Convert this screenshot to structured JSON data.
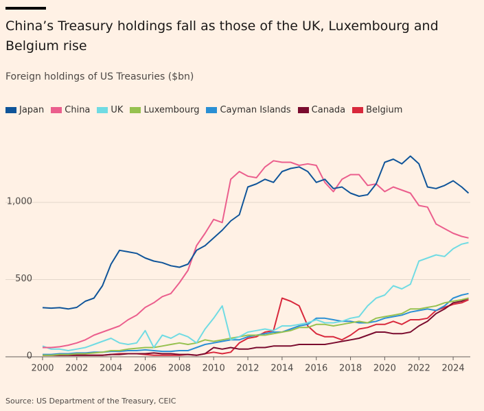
{
  "chart_data": {
    "type": "line",
    "title": "China’s Treasury holdings fall as those of the UK, Luxembourg and Belgium rise",
    "subtitle": "Foreign holdings of US Treasuries ($bn)",
    "source": "Source: US Department of the Treasury, CEIC",
    "x": [
      2000,
      2000.5,
      2001,
      2001.5,
      2002,
      2002.5,
      2003,
      2003.5,
      2004,
      2004.5,
      2005,
      2005.5,
      2006,
      2006.5,
      2007,
      2007.5,
      2008,
      2008.5,
      2009,
      2009.5,
      2010,
      2010.5,
      2011,
      2011.5,
      2012,
      2012.5,
      2013,
      2013.5,
      2014,
      2014.5,
      2015,
      2015.5,
      2016,
      2016.5,
      2017,
      2017.5,
      2018,
      2018.5,
      2019,
      2019.5,
      2020,
      2020.5,
      2021,
      2021.5,
      2022,
      2022.5,
      2023,
      2023.5,
      2024,
      2024.5,
      2024.9
    ],
    "series": [
      {
        "name": "Japan",
        "color": "#0f5499",
        "values": [
          318,
          315,
          318,
          310,
          320,
          360,
          380,
          460,
          600,
          690,
          680,
          670,
          640,
          620,
          610,
          590,
          580,
          600,
          690,
          720,
          770,
          820,
          880,
          920,
          1100,
          1120,
          1150,
          1130,
          1200,
          1220,
          1230,
          1200,
          1130,
          1150,
          1090,
          1100,
          1060,
          1040,
          1050,
          1120,
          1260,
          1280,
          1250,
          1300,
          1250,
          1100,
          1090,
          1110,
          1140,
          1100,
          1060
        ]
      },
      {
        "name": "China",
        "color": "#eb5e8d",
        "values": [
          60,
          60,
          65,
          75,
          90,
          110,
          140,
          160,
          180,
          200,
          240,
          270,
          320,
          350,
          390,
          410,
          480,
          560,
          720,
          800,
          890,
          870,
          1150,
          1200,
          1170,
          1160,
          1230,
          1270,
          1260,
          1260,
          1240,
          1250,
          1240,
          1130,
          1070,
          1150,
          1180,
          1180,
          1110,
          1120,
          1070,
          1100,
          1080,
          1060,
          980,
          970,
          860,
          830,
          800,
          780,
          770
        ]
      },
      {
        "name": "UK",
        "color": "#70dbe3",
        "values": [
          70,
          50,
          50,
          40,
          50,
          60,
          80,
          100,
          120,
          90,
          80,
          90,
          170,
          60,
          140,
          120,
          150,
          130,
          90,
          180,
          250,
          330,
          110,
          130,
          160,
          170,
          180,
          170,
          200,
          200,
          210,
          220,
          240,
          220,
          220,
          230,
          250,
          260,
          330,
          380,
          400,
          460,
          440,
          470,
          620,
          640,
          660,
          650,
          700,
          730,
          740
        ]
      },
      {
        "name": "Luxembourg",
        "color": "#96c14f",
        "values": [
          10,
          10,
          15,
          15,
          20,
          20,
          25,
          30,
          40,
          40,
          50,
          55,
          60,
          60,
          70,
          80,
          90,
          80,
          90,
          110,
          100,
          110,
          120,
          130,
          140,
          140,
          140,
          150,
          160,
          170,
          190,
          190,
          210,
          210,
          200,
          210,
          220,
          230,
          220,
          250,
          260,
          270,
          280,
          310,
          310,
          320,
          330,
          350,
          360,
          370,
          380
        ]
      },
      {
        "name": "Cayman Islands",
        "color": "#2a8fd4",
        "values": [
          15,
          15,
          20,
          20,
          25,
          25,
          30,
          30,
          35,
          35,
          40,
          40,
          45,
          40,
          35,
          35,
          40,
          40,
          60,
          80,
          90,
          100,
          110,
          110,
          130,
          140,
          150,
          160,
          160,
          180,
          200,
          210,
          250,
          250,
          240,
          230,
          230,
          220,
          220,
          230,
          250,
          260,
          270,
          290,
          300,
          310,
          300,
          330,
          380,
          400,
          410
        ]
      },
      {
        "name": "Canada",
        "color": "#7a0b2e",
        "values": [
          10,
          10,
          10,
          10,
          10,
          10,
          10,
          10,
          15,
          15,
          20,
          20,
          20,
          25,
          20,
          20,
          15,
          15,
          10,
          20,
          60,
          50,
          60,
          50,
          50,
          60,
          60,
          70,
          70,
          70,
          80,
          80,
          80,
          80,
          90,
          100,
          110,
          120,
          140,
          160,
          160,
          150,
          150,
          160,
          200,
          230,
          280,
          310,
          350,
          360,
          380
        ]
      },
      {
        "name": "Belgium",
        "color": "#d8283c",
        "values": [
          10,
          10,
          10,
          10,
          10,
          10,
          10,
          10,
          15,
          20,
          20,
          20,
          15,
          10,
          10,
          10,
          10,
          15,
          10,
          20,
          30,
          20,
          30,
          90,
          120,
          130,
          160,
          170,
          380,
          360,
          330,
          200,
          150,
          130,
          130,
          110,
          140,
          180,
          190,
          210,
          210,
          230,
          210,
          240,
          240,
          250,
          300,
          320,
          340,
          350,
          370
        ]
      }
    ],
    "xlim": [
      2000,
      2025
    ],
    "xticks": [
      2000,
      2002,
      2004,
      2006,
      2008,
      2010,
      2012,
      2014,
      2016,
      2018,
      2020,
      2022,
      2024
    ],
    "ylim": [
      0,
      1400
    ],
    "yticks": [
      0,
      500,
      {
        "value": 1000,
        "label": "1,000"
      }
    ],
    "grid": true
  }
}
